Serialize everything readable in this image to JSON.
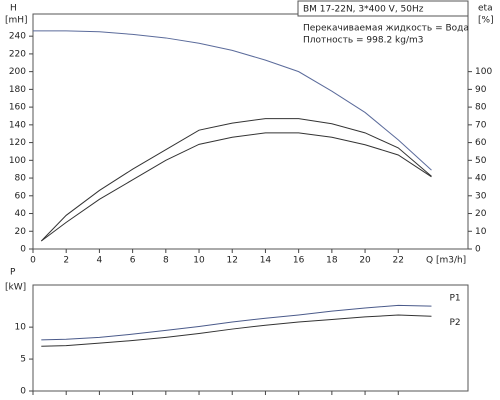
{
  "chart_data": [
    {
      "type": "line",
      "title": "BM 17-22N, 3*400 V, 50Hz",
      "annotations": [
        "Перекачиваемая жидкость = Вода",
        "Плотность = 998.2 kg/m3"
      ],
      "ylabel": "H",
      "yunit": "[mH]",
      "y2label": "eta",
      "y2unit": "[%]",
      "xlabel": "Q [m3/h]",
      "xlim": [
        0,
        26.2
      ],
      "xticks": [
        0,
        2,
        4,
        6,
        8,
        10,
        12,
        14,
        16,
        18,
        20,
        22
      ],
      "ylim": [
        0,
        265
      ],
      "yticks": [
        0,
        20,
        40,
        60,
        80,
        100,
        120,
        140,
        160,
        180,
        200,
        220,
        240
      ],
      "y2lim": [
        0,
        132.5
      ],
      "y2ticks": [
        0,
        10,
        20,
        30,
        40,
        50,
        60,
        70,
        80,
        90,
        100
      ],
      "series": [
        {
          "color": "#5b6b9b",
          "x": [
            0,
            2,
            4,
            6,
            8,
            10,
            12,
            14,
            16,
            18,
            20,
            22,
            24
          ],
          "values": [
            246,
            246,
            245,
            242,
            238,
            232,
            224,
            213,
            200,
            178,
            154,
            123,
            89
          ]
        },
        {
          "color": "#333333",
          "axis": "y2",
          "x": [
            0.5,
            2,
            4,
            6,
            8,
            10,
            12,
            14,
            16,
            18,
            20,
            22,
            24
          ],
          "values": [
            4.5,
            19,
            33,
            45,
            56,
            67,
            71,
            73.5,
            73.5,
            70.6,
            65.5,
            57,
            41
          ]
        },
        {
          "color": "#333333",
          "axis": "y2",
          "x": [
            0.5,
            2,
            4,
            6,
            8,
            10,
            12,
            14,
            16,
            18,
            20,
            22,
            24
          ],
          "values": [
            4.5,
            15,
            28,
            39,
            50,
            59,
            63,
            65.5,
            65.5,
            63,
            58.8,
            53,
            40.7
          ]
        }
      ]
    },
    {
      "type": "line",
      "ylabel": "P",
      "yunit": "[kW]",
      "xlim": [
        0,
        26.2
      ],
      "xticks": [
        0,
        2,
        4,
        6,
        8,
        10,
        12,
        14,
        16,
        18,
        20,
        22
      ],
      "ylim": [
        0,
        16.6
      ],
      "yticks": [
        0,
        5,
        10
      ],
      "series": [
        {
          "name": "P1",
          "color": "#4a5a8a",
          "x": [
            0.5,
            2,
            4,
            6,
            8,
            10,
            12,
            14,
            16,
            18,
            20,
            22,
            24
          ],
          "values": [
            8.0,
            8.1,
            8.4,
            8.9,
            9.5,
            10.1,
            10.8,
            11.4,
            11.9,
            12.5,
            13.0,
            13.4,
            13.3
          ]
        },
        {
          "name": "P2",
          "color": "#333333",
          "x": [
            0.5,
            2,
            4,
            6,
            8,
            10,
            12,
            14,
            16,
            18,
            20,
            22,
            24
          ],
          "values": [
            7.0,
            7.1,
            7.5,
            7.9,
            8.4,
            9.0,
            9.7,
            10.3,
            10.8,
            11.2,
            11.6,
            11.9,
            11.7
          ]
        }
      ]
    }
  ]
}
